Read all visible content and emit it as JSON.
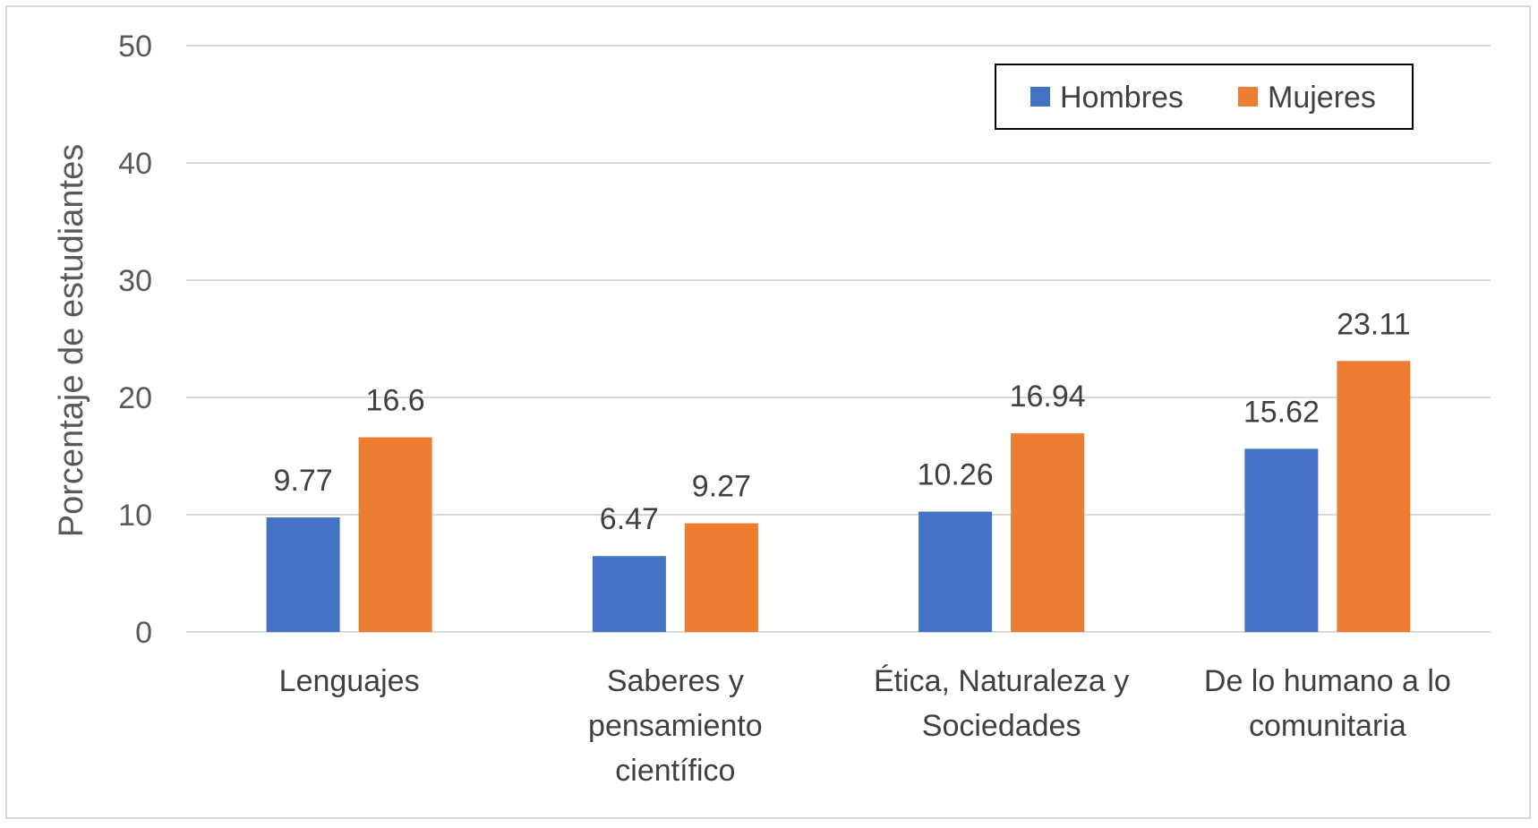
{
  "chart_data": {
    "type": "bar",
    "categories": [
      [
        "Lenguajes"
      ],
      [
        "Saberes y",
        "pensamiento",
        "científico"
      ],
      [
        "Ética, Naturaleza y",
        "Sociedades"
      ],
      [
        "De lo humano a lo",
        "comunitaria"
      ]
    ],
    "series": [
      {
        "name": "Hombres",
        "color": "#4472C4",
        "values": [
          9.77,
          6.47,
          10.26,
          15.62
        ],
        "labels": [
          "9.77",
          "6.47",
          "10.26",
          "15.62"
        ]
      },
      {
        "name": "Mujeres",
        "color": "#ED7D31",
        "values": [
          16.6,
          9.27,
          16.94,
          23.11
        ],
        "labels": [
          "16.6",
          "9.27",
          "16.94",
          "23.11"
        ]
      }
    ],
    "title": "",
    "xlabel": "",
    "ylabel": "Porcentaje de estudiantes",
    "ylim": [
      0,
      50
    ],
    "yticks": [
      0,
      10,
      20,
      30,
      40,
      50
    ],
    "grid": true,
    "legend": "top-right"
  }
}
